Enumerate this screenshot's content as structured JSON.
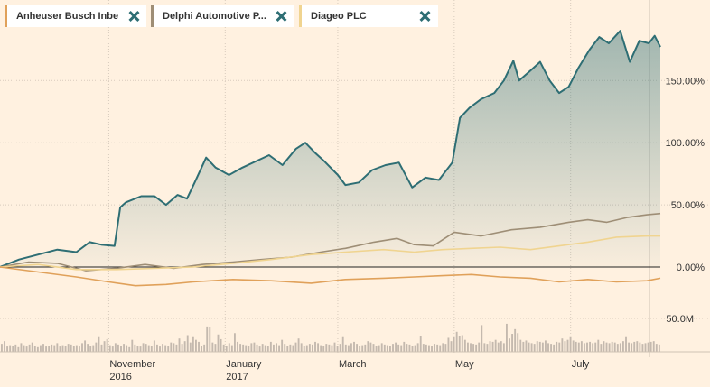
{
  "legend": [
    {
      "label": "Anheuser Busch Inbe...",
      "color": "#e0a15a"
    },
    {
      "label": "Delphi Automotive P...",
      "color": "#9e8e76"
    },
    {
      "label": "Diageo PLC",
      "color": "#f0d490"
    }
  ],
  "chart_data": {
    "type": "line",
    "title": "",
    "y_unit": "%",
    "y_ticks": [
      "0.00%",
      "50.00%",
      "100.00%",
      "150.00%"
    ],
    "y_tick_values": [
      0,
      50,
      100,
      150
    ],
    "ylim": [
      -20,
      200
    ],
    "volume_tick": "50.0M",
    "x_ticks": [
      {
        "label": "November",
        "sub": "2016",
        "date": "2016-11-01"
      },
      {
        "label": "January",
        "sub": "2017",
        "date": "2017-01-01"
      },
      {
        "label": "March",
        "sub": "",
        "date": "2017-03-01"
      },
      {
        "label": "May",
        "sub": "",
        "date": "2017-05-01"
      },
      {
        "label": "July",
        "sub": "",
        "date": "2017-07-01"
      }
    ],
    "xlim": [
      "2016-09-05",
      "2017-08-17"
    ],
    "grid": true,
    "series": [
      {
        "name": "",
        "color": "#2e6e74",
        "area": true,
        "points": [
          [
            "2016-09-05",
            0
          ],
          [
            "2016-09-15",
            6
          ],
          [
            "2016-09-25",
            10
          ],
          [
            "2016-10-05",
            14
          ],
          [
            "2016-10-15",
            12
          ],
          [
            "2016-10-22",
            20
          ],
          [
            "2016-10-28",
            18
          ],
          [
            "2016-11-04",
            17
          ],
          [
            "2016-11-07",
            48
          ],
          [
            "2016-11-10",
            52
          ],
          [
            "2016-11-18",
            57
          ],
          [
            "2016-11-25",
            57
          ],
          [
            "2016-12-01",
            50
          ],
          [
            "2016-12-07",
            58
          ],
          [
            "2016-12-12",
            55
          ],
          [
            "2016-12-16",
            68
          ],
          [
            "2016-12-22",
            88
          ],
          [
            "2016-12-27",
            80
          ],
          [
            "2017-01-03",
            74
          ],
          [
            "2017-01-10",
            80
          ],
          [
            "2017-01-17",
            85
          ],
          [
            "2017-01-24",
            90
          ],
          [
            "2017-01-31",
            82
          ],
          [
            "2017-02-07",
            95
          ],
          [
            "2017-02-12",
            100
          ],
          [
            "2017-02-17",
            92
          ],
          [
            "2017-02-22",
            85
          ],
          [
            "2017-03-01",
            74
          ],
          [
            "2017-03-05",
            66
          ],
          [
            "2017-03-12",
            68
          ],
          [
            "2017-03-19",
            78
          ],
          [
            "2017-03-26",
            82
          ],
          [
            "2017-04-02",
            84
          ],
          [
            "2017-04-09",
            64
          ],
          [
            "2017-04-16",
            72
          ],
          [
            "2017-04-23",
            70
          ],
          [
            "2017-04-30",
            84
          ],
          [
            "2017-05-04",
            120
          ],
          [
            "2017-05-09",
            128
          ],
          [
            "2017-05-15",
            135
          ],
          [
            "2017-05-22",
            140
          ],
          [
            "2017-05-27",
            150
          ],
          [
            "2017-06-01",
            166
          ],
          [
            "2017-06-04",
            150
          ],
          [
            "2017-06-10",
            158
          ],
          [
            "2017-06-15",
            165
          ],
          [
            "2017-06-20",
            150
          ],
          [
            "2017-06-25",
            140
          ],
          [
            "2017-06-30",
            145
          ],
          [
            "2017-07-05",
            160
          ],
          [
            "2017-07-11",
            175
          ],
          [
            "2017-07-16",
            185
          ],
          [
            "2017-07-21",
            180
          ],
          [
            "2017-07-27",
            190
          ],
          [
            "2017-08-01",
            165
          ],
          [
            "2017-08-06",
            182
          ],
          [
            "2017-08-11",
            180
          ],
          [
            "2017-08-14",
            186
          ],
          [
            "2017-08-17",
            177
          ]
        ]
      },
      {
        "name": "",
        "color": "#9e8e76",
        "area": false,
        "points": [
          [
            "2016-09-05",
            0
          ],
          [
            "2016-09-20",
            4
          ],
          [
            "2016-10-05",
            3
          ],
          [
            "2016-10-20",
            -3
          ],
          [
            "2016-11-05",
            -1
          ],
          [
            "2016-11-20",
            2
          ],
          [
            "2016-12-05",
            -1
          ],
          [
            "2016-12-20",
            2
          ],
          [
            "2017-01-05",
            4
          ],
          [
            "2017-01-20",
            6
          ],
          [
            "2017-02-05",
            8
          ],
          [
            "2017-02-20",
            12
          ],
          [
            "2017-03-05",
            15
          ],
          [
            "2017-03-20",
            20
          ],
          [
            "2017-04-01",
            23
          ],
          [
            "2017-04-10",
            18
          ],
          [
            "2017-04-20",
            17
          ],
          [
            "2017-05-01",
            28
          ],
          [
            "2017-05-15",
            25
          ],
          [
            "2017-05-31",
            30
          ],
          [
            "2017-06-15",
            32
          ],
          [
            "2017-06-30",
            36
          ],
          [
            "2017-07-10",
            38
          ],
          [
            "2017-07-20",
            36
          ],
          [
            "2017-07-31",
            40
          ],
          [
            "2017-08-10",
            42
          ],
          [
            "2017-08-17",
            43
          ]
        ]
      },
      {
        "name": "",
        "color": "#f0d490",
        "area": false,
        "points": [
          [
            "2016-09-05",
            0
          ],
          [
            "2016-09-25",
            2
          ],
          [
            "2016-10-15",
            -2
          ],
          [
            "2016-11-05",
            -2
          ],
          [
            "2016-11-25",
            -1
          ],
          [
            "2016-12-15",
            0
          ],
          [
            "2017-01-05",
            3
          ],
          [
            "2017-01-25",
            6
          ],
          [
            "2017-02-15",
            10
          ],
          [
            "2017-03-05",
            12
          ],
          [
            "2017-03-25",
            14
          ],
          [
            "2017-04-10",
            12
          ],
          [
            "2017-04-25",
            14
          ],
          [
            "2017-05-10",
            15
          ],
          [
            "2017-05-25",
            16
          ],
          [
            "2017-06-10",
            14
          ],
          [
            "2017-06-25",
            17
          ],
          [
            "2017-07-10",
            20
          ],
          [
            "2017-07-25",
            24
          ],
          [
            "2017-08-10",
            25
          ],
          [
            "2017-08-17",
            25
          ]
        ]
      },
      {
        "name": "",
        "color": "#e0a15a",
        "area": false,
        "points": [
          [
            "2016-09-05",
            0
          ],
          [
            "2016-09-25",
            -4
          ],
          [
            "2016-10-15",
            -8
          ],
          [
            "2016-11-01",
            -12
          ],
          [
            "2016-11-15",
            -15
          ],
          [
            "2016-12-01",
            -14
          ],
          [
            "2016-12-15",
            -12
          ],
          [
            "2017-01-05",
            -10
          ],
          [
            "2017-01-25",
            -11
          ],
          [
            "2017-02-15",
            -13
          ],
          [
            "2017-03-05",
            -10
          ],
          [
            "2017-03-25",
            -9
          ],
          [
            "2017-04-10",
            -8
          ],
          [
            "2017-04-25",
            -7
          ],
          [
            "2017-05-10",
            -6
          ],
          [
            "2017-05-25",
            -8
          ],
          [
            "2017-06-10",
            -9
          ],
          [
            "2017-06-25",
            -12
          ],
          [
            "2017-07-10",
            -10
          ],
          [
            "2017-07-25",
            -12
          ],
          [
            "2017-08-10",
            -11
          ],
          [
            "2017-08-17",
            -9
          ]
        ]
      }
    ],
    "volume": {
      "color": "#c4b9ae",
      "scale_max": 50,
      "values": [
        12,
        16,
        8,
        10,
        9,
        11,
        7,
        13,
        10,
        8,
        11,
        14,
        9,
        7,
        10,
        12,
        8,
        9,
        11,
        10,
        13,
        8,
        10,
        9,
        12,
        11,
        9,
        10,
        8,
        13,
        17,
        12,
        9,
        10,
        14,
        22,
        11,
        16,
        19,
        10,
        8,
        13,
        11,
        9,
        12,
        10,
        7,
        18,
        11,
        9,
        8,
        13,
        12,
        10,
        9,
        17,
        11,
        8,
        12,
        10,
        9,
        14,
        13,
        11,
        20,
        12,
        16,
        25,
        14,
        22,
        18,
        15,
        9,
        11,
        38,
        37,
        14,
        12,
        26,
        19,
        11,
        9,
        13,
        10,
        28,
        15,
        12,
        11,
        10,
        9,
        13,
        14,
        11,
        8,
        12,
        10,
        9,
        15,
        11,
        13,
        10,
        18,
        12,
        9,
        11,
        10,
        14,
        20,
        13,
        9,
        10,
        12,
        11,
        15,
        13,
        10,
        9,
        12,
        11,
        10,
        14,
        9,
        12,
        22,
        11,
        10,
        13,
        15,
        12,
        9,
        10,
        11,
        16,
        14,
        12,
        9,
        10,
        13,
        11,
        10,
        9,
        12,
        14,
        11,
        10,
        15,
        12,
        11,
        9,
        10,
        13,
        24,
        12,
        11,
        10,
        9,
        12,
        11,
        10,
        13,
        12,
        21,
        16,
        22,
        30,
        24,
        25,
        18,
        14,
        13,
        12,
        11,
        14,
        40,
        13,
        12,
        16,
        15,
        18,
        14,
        16,
        13,
        42,
        20,
        27,
        34,
        28,
        18,
        15,
        17,
        14,
        13,
        12,
        16,
        15,
        14,
        17,
        13,
        12,
        11,
        15,
        14,
        20,
        16,
        18,
        22,
        17,
        15,
        14,
        16,
        13,
        14,
        15,
        13,
        14,
        18,
        12,
        16,
        14,
        13,
        15,
        14,
        12,
        13,
        16,
        22,
        14,
        13,
        15,
        16,
        14,
        12,
        13,
        14,
        15,
        16,
        12,
        11
      ]
    }
  }
}
